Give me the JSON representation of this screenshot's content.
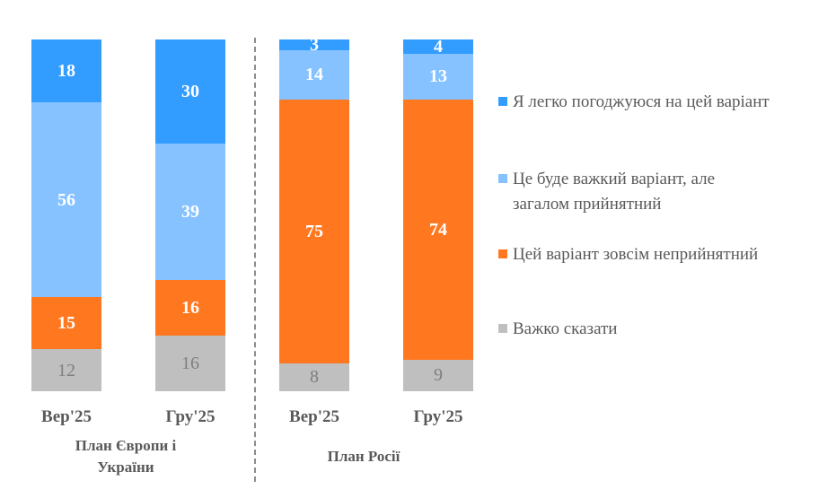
{
  "chart_data": {
    "type": "bar",
    "stacked": true,
    "title": "",
    "xlabel": "",
    "ylabel": "",
    "ylim": [
      0,
      100
    ],
    "grid": false,
    "legend_position": "right",
    "groups": [
      {
        "label": "План Європи і України",
        "categories": [
          "Вер'25",
          "Гру'25"
        ]
      },
      {
        "label": "План Росії",
        "categories": [
          "Вер'25",
          "Гру'25"
        ]
      }
    ],
    "categories": [
      "Вер'25",
      "Гру'25",
      "Вер'25",
      "Гру'25"
    ],
    "series": [
      {
        "name": "Я легко погоджуюся на цей варіант",
        "color": "#339CFF",
        "values": [
          18,
          30,
          3,
          4
        ]
      },
      {
        "name": "Це буде важкий варіант, але загалом прийнятний",
        "color": "#85C2FF",
        "values": [
          56,
          39,
          14,
          13
        ]
      },
      {
        "name": "Цей варіант зовсім неприйнятний",
        "color": "#FF781F",
        "values": [
          15,
          16,
          75,
          74
        ]
      },
      {
        "name": "Важко сказати",
        "color": "#BFBFBF",
        "values": [
          12,
          16,
          8,
          9
        ]
      }
    ]
  },
  "bars": [
    {
      "x": 35,
      "segments": [
        {
          "v": 18,
          "l": "18"
        },
        {
          "v": 56,
          "l": "56"
        },
        {
          "v": 15,
          "l": "15"
        },
        {
          "v": 12,
          "l": "12"
        }
      ]
    },
    {
      "x": 173,
      "segments": [
        {
          "v": 30,
          "l": "30"
        },
        {
          "v": 39,
          "l": "39"
        },
        {
          "v": 16,
          "l": "16"
        },
        {
          "v": 16,
          "l": "16"
        }
      ]
    },
    {
      "x": 311,
      "segments": [
        {
          "v": 3,
          "l": "3"
        },
        {
          "v": 14,
          "l": "14"
        },
        {
          "v": 75,
          "l": "75"
        },
        {
          "v": 8,
          "l": "8"
        }
      ]
    },
    {
      "x": 449,
      "segments": [
        {
          "v": 4,
          "l": "4"
        },
        {
          "v": 13,
          "l": "13"
        },
        {
          "v": 74,
          "l": "74"
        },
        {
          "v": 9,
          "l": "9"
        }
      ]
    }
  ],
  "axis": {
    "x_labels": [
      "Вер'25",
      "Гру'25",
      "Вер'25",
      "Гру'25"
    ],
    "group1_line1": "План Європи і",
    "group1_line2": "України",
    "group2": "План Росії"
  },
  "legend": [
    {
      "label": "Я легко погоджуюся на цей варіант",
      "color": "#339CFF"
    },
    {
      "label": "Це буде важкий варіант, але загалом прийнятний",
      "color": "#85C2FF"
    },
    {
      "label": "Цей варіант зовсім неприйнятний",
      "color": "#FF781F"
    },
    {
      "label": "Важко сказати",
      "color": "#BFBFBF"
    }
  ]
}
